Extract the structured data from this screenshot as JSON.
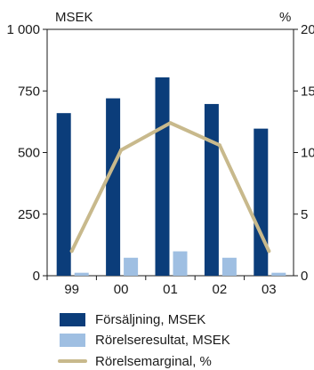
{
  "chart_data": {
    "type": "bar",
    "categories": [
      "99",
      "00",
      "01",
      "02",
      "03"
    ],
    "left_axis": {
      "unit_label": "MSEK",
      "ylim": [
        0,
        1000
      ],
      "ticks": [
        0,
        250,
        500,
        750,
        1000
      ],
      "tick_labels": [
        "0",
        "250",
        "500",
        "750",
        "1 000"
      ]
    },
    "right_axis": {
      "unit_label": "%",
      "ylim": [
        0,
        20
      ],
      "ticks": [
        0,
        5,
        10,
        15,
        20
      ],
      "tick_labels": [
        "0",
        "5",
        "10",
        "15",
        "20"
      ]
    },
    "series": [
      {
        "name": "Försäljning, MSEK",
        "kind": "bar",
        "axis": "left",
        "color": "#0b3d7a",
        "values": [
          660,
          720,
          805,
          697,
          597
        ]
      },
      {
        "name": "Rörelseresultat, MSEK",
        "kind": "bar",
        "axis": "left",
        "color": "#9fbfe2",
        "values": [
          12,
          73,
          99,
          73,
          12
        ]
      },
      {
        "name": "Rörelsemarginal, %",
        "kind": "line",
        "axis": "right",
        "color": "#c8b98c",
        "values": [
          2.0,
          10.2,
          12.4,
          10.6,
          2.0
        ]
      }
    ],
    "legend_position": "bottom-left",
    "grid": false
  }
}
